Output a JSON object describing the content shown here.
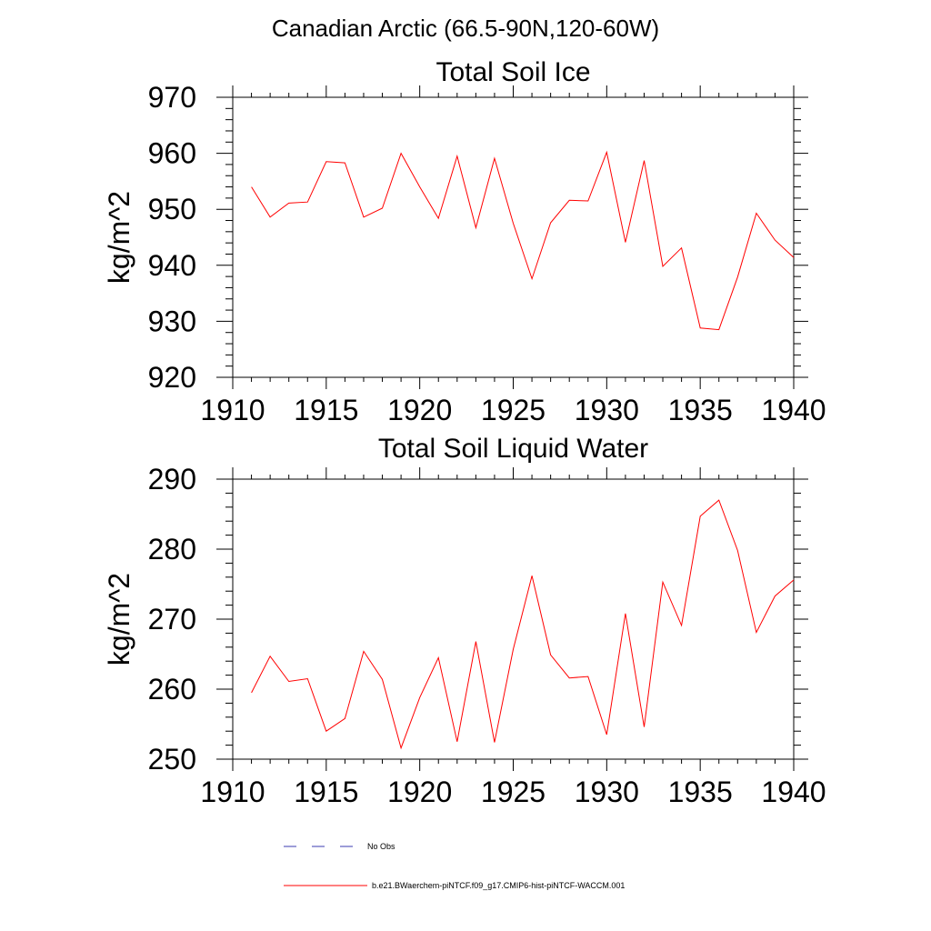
{
  "figure": {
    "title": "Canadian Arctic (66.5-90N,120-60W)",
    "legend": [
      {
        "label": "No Obs",
        "color": "#3b3bb0",
        "style": "dashed"
      },
      {
        "label": "b.e21.BWaerchem-piNTCF.f09_g17.CMIP6-hist-piNTCF-WACCM.001",
        "color": "#ff0000",
        "style": "solid"
      }
    ]
  },
  "chart_data": [
    {
      "type": "line",
      "title": "Total Soil Ice",
      "xlabel": "",
      "ylabel": "kg/m^2",
      "xlim": [
        1910,
        1940
      ],
      "ylim": [
        920,
        970
      ],
      "xticks": [
        1910,
        1915,
        1920,
        1925,
        1930,
        1935,
        1940
      ],
      "yticks": [
        920,
        930,
        940,
        950,
        960,
        970
      ],
      "x": [
        1911,
        1912,
        1913,
        1914,
        1915,
        1916,
        1917,
        1918,
        1919,
        1920,
        1921,
        1922,
        1923,
        1924,
        1925,
        1926,
        1927,
        1928,
        1929,
        1930,
        1931,
        1932,
        1933,
        1934,
        1935,
        1936,
        1937,
        1938,
        1939,
        1940
      ],
      "series": [
        {
          "color": "#ff0000",
          "values": [
            954.0,
            948.6,
            951.1,
            951.3,
            958.5,
            958.3,
            948.6,
            950.2,
            960.0,
            954.0,
            948.4,
            959.5,
            946.7,
            959.1,
            947.5,
            937.6,
            947.6,
            951.6,
            951.5,
            960.2,
            944.1,
            958.7,
            939.8,
            943.1,
            928.8,
            928.5,
            937.9,
            949.3,
            944.5,
            941.4
          ]
        }
      ]
    },
    {
      "type": "line",
      "title": "Total Soil Liquid Water",
      "xlabel": "",
      "ylabel": "kg/m^2",
      "xlim": [
        1910,
        1940
      ],
      "ylim": [
        250,
        290
      ],
      "xticks": [
        1910,
        1915,
        1920,
        1925,
        1930,
        1935,
        1940
      ],
      "yticks": [
        250,
        260,
        270,
        280,
        290
      ],
      "x": [
        1911,
        1912,
        1913,
        1914,
        1915,
        1916,
        1917,
        1918,
        1919,
        1920,
        1921,
        1922,
        1923,
        1924,
        1925,
        1926,
        1927,
        1928,
        1929,
        1930,
        1931,
        1932,
        1933,
        1934,
        1935,
        1936,
        1937,
        1938,
        1939,
        1940
      ],
      "series": [
        {
          "color": "#ff0000",
          "values": [
            259.5,
            264.7,
            261.1,
            261.5,
            254.0,
            255.8,
            265.4,
            261.4,
            251.6,
            258.8,
            264.5,
            252.5,
            266.8,
            252.4,
            265.7,
            276.2,
            264.9,
            261.6,
            261.8,
            253.5,
            270.8,
            254.6,
            275.3,
            269.1,
            284.7,
            287.0,
            279.8,
            268.1,
            273.3,
            275.6
          ]
        }
      ]
    }
  ]
}
